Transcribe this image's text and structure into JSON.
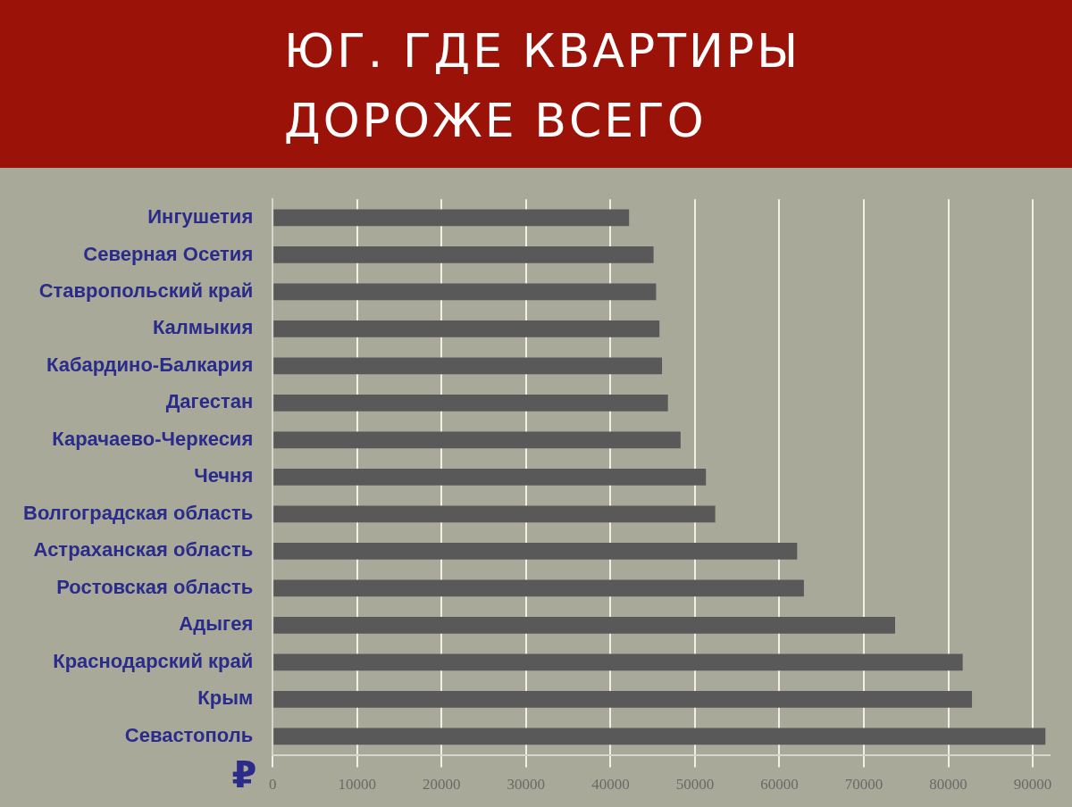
{
  "chart_data": {
    "type": "bar",
    "orientation": "horizontal",
    "title": "ЮГ. ГДЕ КВАРТИРЫ ДОРОЖЕ ВСЕГО",
    "xlabel": "₽",
    "categories": [
      "Ингушетия",
      "Северная Осетия",
      "Ставропольский край",
      "Калмыкия",
      "Кабардино-Балкария",
      "Дагестан",
      "Карачаево-Черкесия",
      "Чечня",
      "Волгоградская область",
      "Астраханская область",
      "Ростовская область",
      "Адыгея",
      "Краснодарский край",
      "Крым",
      "Севастополь"
    ],
    "values": [
      42200,
      45100,
      45400,
      45800,
      46100,
      46800,
      48300,
      51300,
      52400,
      62100,
      62900,
      73700,
      81700,
      82800,
      91500
    ],
    "color": "#595959",
    "xlim": [
      0,
      92000
    ],
    "xticks": [
      0,
      10000,
      20000,
      30000,
      40000,
      50000,
      60000,
      70000,
      80000,
      90000
    ],
    "grid": "x",
    "legend": false
  }
}
